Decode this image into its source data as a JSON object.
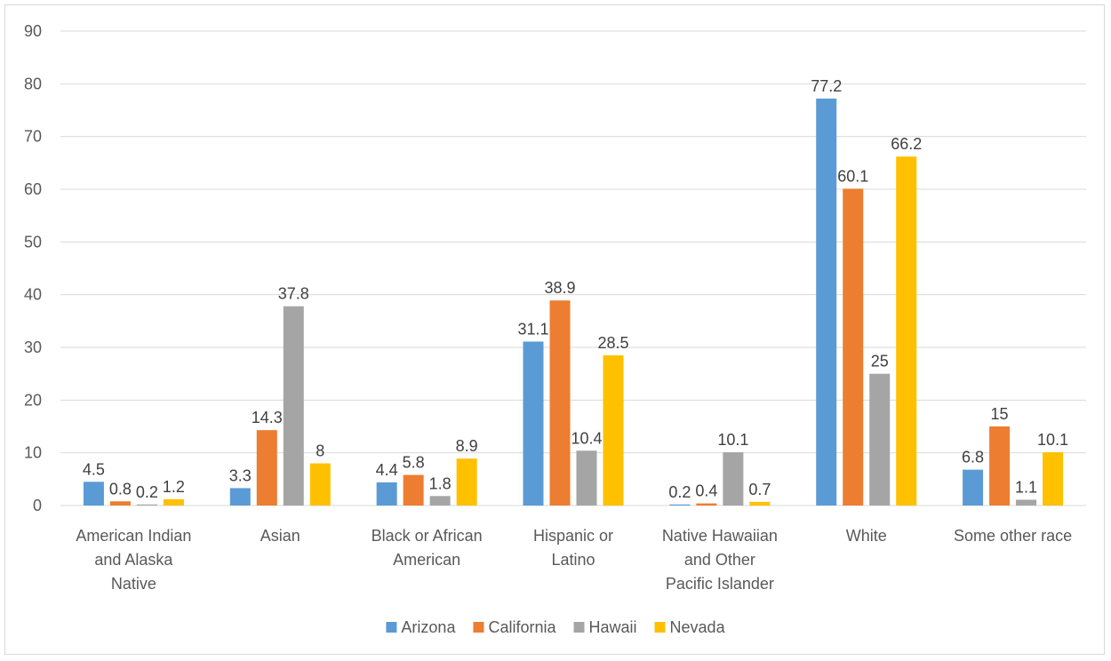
{
  "chart_data": {
    "type": "bar",
    "title": "",
    "xlabel": "",
    "ylabel": "",
    "ylim": [
      0,
      90
    ],
    "yticks": [
      0,
      10,
      20,
      30,
      40,
      50,
      60,
      70,
      80,
      90
    ],
    "grid": true,
    "legend_position": "bottom",
    "categories": [
      [
        "American Indian",
        "and Alaska",
        "Native"
      ],
      [
        "Asian"
      ],
      [
        "Black or African",
        "American"
      ],
      [
        "Hispanic or",
        "Latino"
      ],
      [
        "Native Hawaiian",
        "and Other",
        "Pacific Islander"
      ],
      [
        "White"
      ],
      [
        "Some other race"
      ]
    ],
    "series": [
      {
        "name": "Arizona",
        "color": "#5b9bd5",
        "values": [
          4.5,
          3.3,
          4.4,
          31.1,
          0.2,
          77.2,
          6.8
        ],
        "labels": [
          "4.5",
          "3.3",
          "4.4",
          "31.1",
          "0.2",
          "77.2",
          "6.8"
        ]
      },
      {
        "name": "California",
        "color": "#ed7d31",
        "values": [
          0.8,
          14.3,
          5.8,
          38.9,
          0.4,
          60.1,
          15
        ],
        "labels": [
          "0.8",
          "14.3",
          "5.8",
          "38.9",
          "0.4",
          "60.1",
          "15"
        ]
      },
      {
        "name": "Hawaii",
        "color": "#a5a5a5",
        "values": [
          0.2,
          37.8,
          1.8,
          10.4,
          10.1,
          25,
          1.1
        ],
        "labels": [
          "0.2",
          "37.8",
          "1.8",
          "10.4",
          "10.1",
          "25",
          "1.1"
        ]
      },
      {
        "name": "Nevada",
        "color": "#ffc000",
        "values": [
          1.2,
          8,
          8.9,
          28.5,
          0.7,
          66.2,
          10.1
        ],
        "labels": [
          "1.2",
          "8",
          "8.9",
          "28.5",
          "0.7",
          "66.2",
          "10.1"
        ]
      }
    ]
  }
}
